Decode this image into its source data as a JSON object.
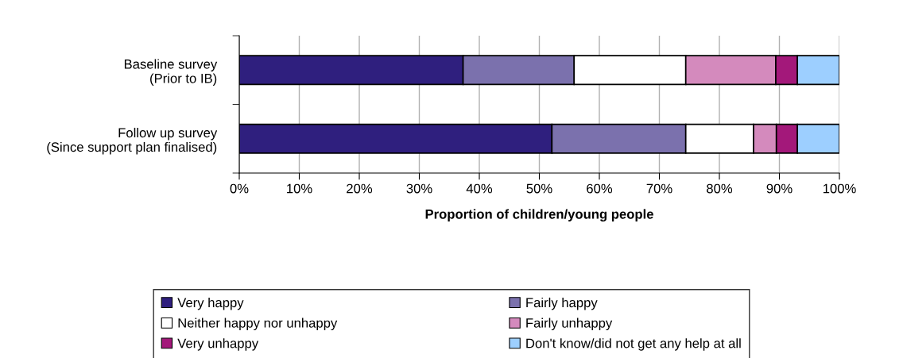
{
  "chart_data": {
    "type": "bar",
    "orientation": "horizontal",
    "stacked": true,
    "categories": [
      "Baseline survey (Prior to IB)",
      "Follow up survey (Since support plan finalised)"
    ],
    "xlabel": "Proportion of children/young people",
    "xlim": [
      0,
      100
    ],
    "xticks": [
      {
        "value": 0,
        "label": "0%"
      },
      {
        "value": 10,
        "label": "10%"
      },
      {
        "value": 20,
        "label": "20%"
      },
      {
        "value": 30,
        "label": "30%"
      },
      {
        "value": 40,
        "label": "40%"
      },
      {
        "value": 50,
        "label": "50%"
      },
      {
        "value": 60,
        "label": "60%"
      },
      {
        "value": 70,
        "label": "70%"
      },
      {
        "value": 80,
        "label": "80%"
      },
      {
        "value": 90,
        "label": "90%"
      },
      {
        "value": 100,
        "label": "100%"
      }
    ],
    "grid": "x",
    "legend": "bottom",
    "series": [
      {
        "name": "Very happy",
        "color": "#2f1f7e",
        "values": [
          37.3,
          52.1
        ]
      },
      {
        "name": "Fairly happy",
        "color": "#7b71ad",
        "values": [
          18.5,
          22.3
        ]
      },
      {
        "name": "Neither happy nor unhappy",
        "color": "#ffffff",
        "values": [
          18.6,
          11.3
        ]
      },
      {
        "name": "Fairly unhappy",
        "color": "#d48abd",
        "values": [
          15.0,
          3.8
        ]
      },
      {
        "name": "Very unhappy",
        "color": "#a3187a",
        "values": [
          3.6,
          3.5
        ]
      },
      {
        "name": "Don't know/did not get any help at all",
        "color": "#9dcfff",
        "values": [
          7.0,
          7.0
        ]
      }
    ]
  }
}
